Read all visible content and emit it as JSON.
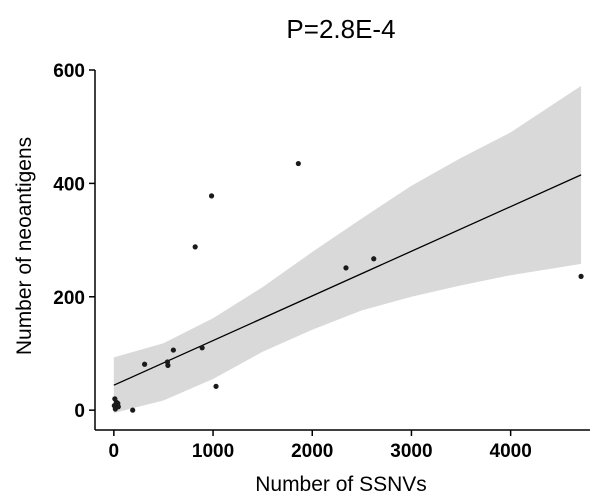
{
  "chart_data": {
    "type": "scatter",
    "title": "P=2.8E-4",
    "xlabel": "Number of SSNVs",
    "ylabel": "Number of neoantigens",
    "xlim": [
      -190,
      4800
    ],
    "ylim": [
      -35,
      600
    ],
    "xticks": [
      0,
      1000,
      2000,
      3000,
      4000
    ],
    "yticks": [
      0,
      200,
      400,
      600
    ],
    "xtick_labels": [
      "0",
      "1000",
      "2000",
      "3000",
      "4000"
    ],
    "ytick_labels": [
      "0",
      "200",
      "400",
      "600"
    ],
    "grid": false,
    "legend": "none",
    "points": [
      {
        "x": 1860,
        "y": 435
      },
      {
        "x": 985,
        "y": 378
      },
      {
        "x": 820,
        "y": 288
      },
      {
        "x": 2620,
        "y": 267
      },
      {
        "x": 2340,
        "y": 251
      },
      {
        "x": 4710,
        "y": 236
      },
      {
        "x": 600,
        "y": 106
      },
      {
        "x": 890,
        "y": 110
      },
      {
        "x": 310,
        "y": 81
      },
      {
        "x": 540,
        "y": 85
      },
      {
        "x": 545,
        "y": 79
      },
      {
        "x": 1030,
        "y": 42
      },
      {
        "x": 190,
        "y": 0
      },
      {
        "x": 10,
        "y": 20
      },
      {
        "x": 25,
        "y": 14
      },
      {
        "x": 40,
        "y": 12
      },
      {
        "x": 5,
        "y": 8
      },
      {
        "x": 20,
        "y": 5
      },
      {
        "x": 45,
        "y": 6
      },
      {
        "x": 15,
        "y": 2
      }
    ],
    "regression": {
      "x": [
        0,
        4710
      ],
      "y": [
        44,
        415
      ]
    },
    "confidence_band": {
      "x": [
        0,
        500,
        1000,
        1500,
        2000,
        2500,
        3000,
        3500,
        4000,
        4710
      ],
      "upper": [
        93,
        118,
        162,
        217,
        279,
        338,
        396,
        445,
        490,
        572
      ],
      "lower": [
        -5,
        17,
        55,
        103,
        142,
        176,
        200,
        220,
        238,
        258
      ]
    },
    "colors": {
      "points": "#1a1a1a",
      "line": "#000000",
      "band": "#d9d9d9"
    }
  }
}
